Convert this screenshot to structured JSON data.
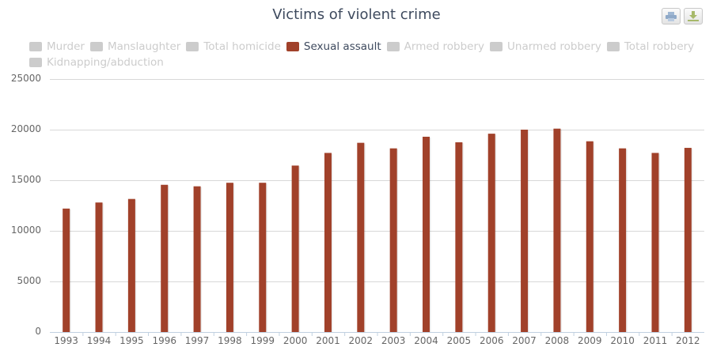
{
  "title": "Victims of violent crime",
  "export": {
    "print_icon": "printer-icon",
    "download_icon": "download-icon"
  },
  "legend": [
    {
      "label": "Murder",
      "visible": false
    },
    {
      "label": "Manslaughter",
      "visible": false
    },
    {
      "label": "Total homicide",
      "visible": false
    },
    {
      "label": "Sexual assault",
      "visible": true,
      "color": "#a1412a"
    },
    {
      "label": "Armed robbery",
      "visible": false
    },
    {
      "label": "Unarmed robbery",
      "visible": false
    },
    {
      "label": "Total robbery",
      "visible": false
    },
    {
      "label": "Kidnapping/abduction",
      "visible": false
    }
  ],
  "colors": {
    "bar": "#a1412a",
    "grid": "#d8d8d8",
    "inactive": "#cccccc",
    "title": "#3e4a5e"
  },
  "chart_data": {
    "type": "bar",
    "title": "Victims of violent crime",
    "xlabel": "",
    "ylabel": "",
    "categories": [
      "1993",
      "1994",
      "1995",
      "1996",
      "1997",
      "1998",
      "1999",
      "2000",
      "2001",
      "2002",
      "2003",
      "2004",
      "2005",
      "2006",
      "2007",
      "2008",
      "2009",
      "2010",
      "2011",
      "2012"
    ],
    "series": [
      {
        "name": "Sexual assault",
        "color": "#a1412a",
        "values": [
          12200,
          12800,
          13150,
          14550,
          14400,
          14750,
          14750,
          16450,
          17700,
          18700,
          18150,
          19300,
          18750,
          19600,
          20000,
          20100,
          18850,
          18150,
          17700,
          18200
        ]
      }
    ],
    "ylim": [
      0,
      25000
    ],
    "yticks": [
      0,
      5000,
      10000,
      15000,
      20000,
      25000
    ],
    "grid": true,
    "legend_position": "top"
  }
}
